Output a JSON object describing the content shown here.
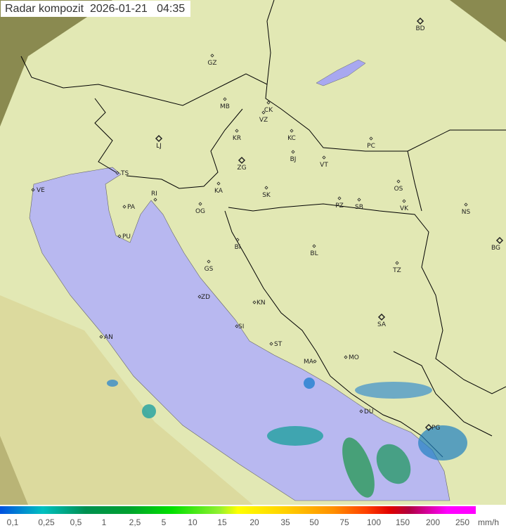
{
  "header": {
    "title": "Radar kompozit",
    "date": "2026-01-21",
    "time": "04:35"
  },
  "legend": {
    "unit": "mm/h",
    "ticks": [
      "0,1",
      "0,25",
      "0,5",
      "1",
      "2,5",
      "5",
      "10",
      "15",
      "20",
      "35",
      "50",
      "75",
      "100",
      "150",
      "200",
      "250"
    ]
  },
  "colors": {
    "sea": "#b8b8f0",
    "land": "#e0e8b0",
    "outside": "#8a8a50",
    "border": "#000000"
  },
  "cities": [
    {
      "code": "GZ",
      "type": "dot"
    },
    {
      "code": "MB",
      "type": "dot"
    },
    {
      "code": "CK",
      "type": "dot"
    },
    {
      "code": "VZ",
      "type": "dot"
    },
    {
      "code": "KR",
      "type": "dot"
    },
    {
      "code": "KC",
      "type": "dot"
    },
    {
      "code": "LJ",
      "type": "capital"
    },
    {
      "code": "ZG",
      "type": "capital"
    },
    {
      "code": "BJ",
      "type": "dot"
    },
    {
      "code": "VT",
      "type": "dot"
    },
    {
      "code": "PC",
      "type": "dot"
    },
    {
      "code": "BD",
      "type": "capital"
    },
    {
      "code": "TS",
      "type": "dot"
    },
    {
      "code": "VE",
      "type": "dot"
    },
    {
      "code": "RI",
      "type": "dot"
    },
    {
      "code": "PA",
      "type": "dot"
    },
    {
      "code": "KA",
      "type": "dot"
    },
    {
      "code": "SK",
      "type": "dot"
    },
    {
      "code": "PZ",
      "type": "dot"
    },
    {
      "code": "SB",
      "type": "dot"
    },
    {
      "code": "OS",
      "type": "dot"
    },
    {
      "code": "VK",
      "type": "dot"
    },
    {
      "code": "NS",
      "type": "dot"
    },
    {
      "code": "OG",
      "type": "dot"
    },
    {
      "code": "PU",
      "type": "dot"
    },
    {
      "code": "BI",
      "type": "dot"
    },
    {
      "code": "BL",
      "type": "dot"
    },
    {
      "code": "BG",
      "type": "capital"
    },
    {
      "code": "GS",
      "type": "dot"
    },
    {
      "code": "TZ",
      "type": "dot"
    },
    {
      "code": "ZD",
      "type": "dot"
    },
    {
      "code": "KN",
      "type": "dot"
    },
    {
      "code": "SA",
      "type": "capital"
    },
    {
      "code": "SI",
      "type": "dot"
    },
    {
      "code": "ST",
      "type": "dot"
    },
    {
      "code": "AN",
      "type": "dot"
    },
    {
      "code": "MO",
      "type": "dot"
    },
    {
      "code": "MA",
      "type": "dot"
    },
    {
      "code": "DU",
      "type": "dot"
    },
    {
      "code": "PG",
      "type": "capital"
    }
  ]
}
